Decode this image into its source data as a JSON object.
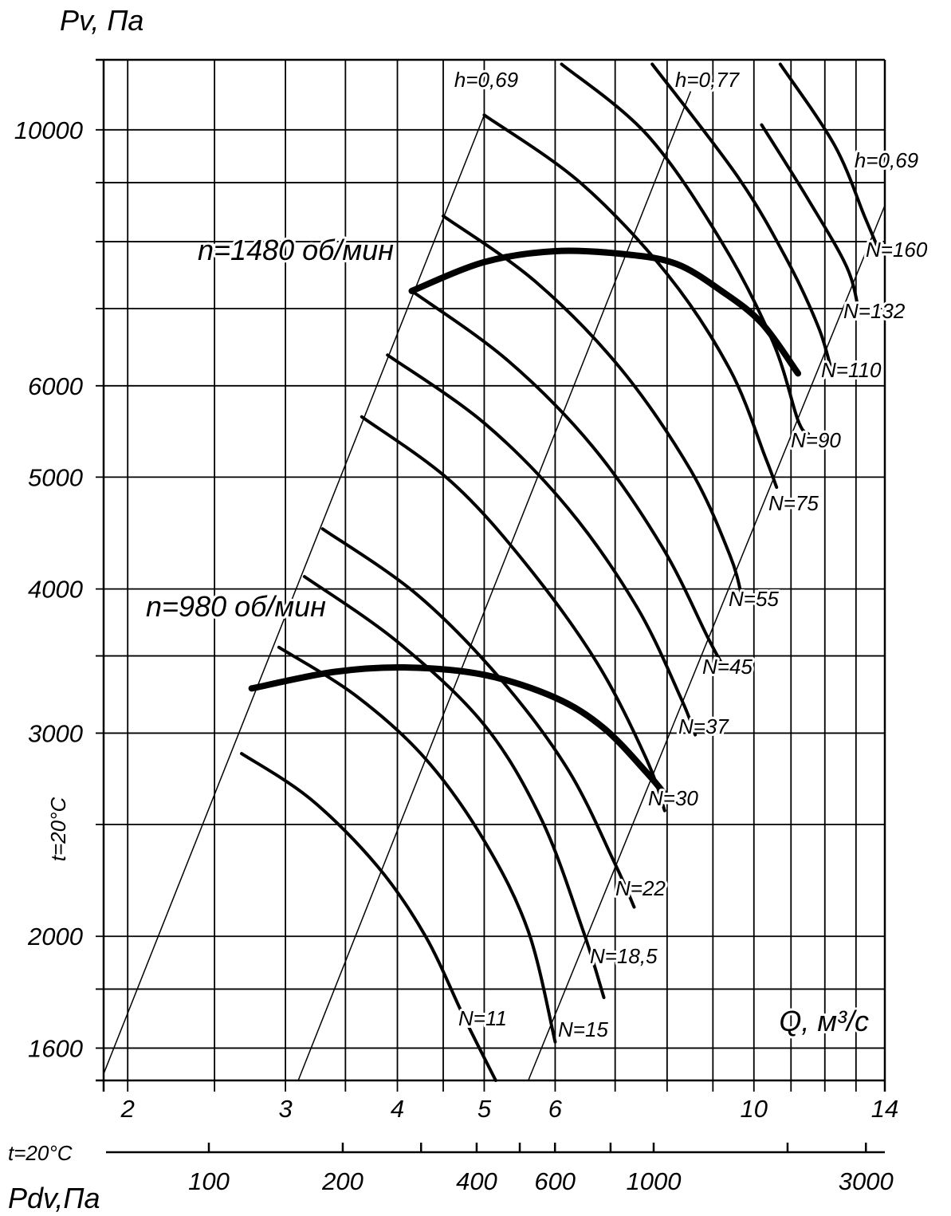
{
  "chart_data": {
    "type": "line",
    "y_axis": {
      "label": "Pv, Па",
      "scale": "log",
      "range": [
        1500,
        11500
      ],
      "ticks": [
        {
          "value": 10000,
          "label": "10000"
        },
        {
          "value": 6000,
          "label": "6000"
        },
        {
          "value": 5000,
          "label": "5000"
        },
        {
          "value": 4000,
          "label": "4000"
        },
        {
          "value": 3000,
          "label": "3000"
        },
        {
          "value": 2000,
          "label": "2000"
        },
        {
          "value": 1600,
          "label": "1600"
        }
      ],
      "minor_ticks": [
        9000,
        8000,
        7000,
        3500,
        2500,
        1800,
        1500
      ]
    },
    "x_axis": {
      "label": "Q, м³/с",
      "scale": "log",
      "range": [
        1.88,
        14
      ],
      "ticks": [
        {
          "value": 2,
          "label": "2"
        },
        {
          "value": 3,
          "label": "3"
        },
        {
          "value": 4,
          "label": "4"
        },
        {
          "value": 5,
          "label": "5"
        },
        {
          "value": 6,
          "label": "6"
        },
        {
          "value": 10,
          "label": "10"
        },
        {
          "value": 14,
          "label": "14"
        }
      ],
      "minor_ticks": [
        2.5,
        3.5,
        4.5,
        7,
        8,
        9,
        11,
        12,
        13
      ]
    },
    "dynamic_pressure_axis": {
      "label": "Pdv,Па",
      "condition": "t=20°C",
      "ticks": [
        {
          "value": 100,
          "label": "100"
        },
        {
          "value": 200,
          "label": "200"
        },
        {
          "value": 400,
          "label": "400"
        },
        {
          "value": 600,
          "label": "600"
        },
        {
          "value": 1000,
          "label": "1000"
        },
        {
          "value": 3000,
          "label": "3000"
        }
      ],
      "minor_ticks": [
        300,
        500,
        800,
        2000
      ]
    },
    "condition_label": "t=20°C",
    "efficiency_lines": [
      {
        "label": "h=0,69",
        "points": [
          [
            1.88,
            1520
          ],
          [
            5.0,
            10300
          ]
        ]
      },
      {
        "label": "h=0,77",
        "points": [
          [
            3.1,
            1500
          ],
          [
            8.5,
            10800
          ]
        ]
      },
      {
        "label": "h=0,69",
        "points": [
          [
            5.6,
            1500
          ],
          [
            14.0,
            8600
          ]
        ]
      }
    ],
    "speed_curves": [
      {
        "label": "n=1480 об/мин",
        "points": [
          [
            4.15,
            7250
          ],
          [
            5.0,
            7680
          ],
          [
            6.0,
            7850
          ],
          [
            7.2,
            7800
          ],
          [
            8.2,
            7650
          ],
          [
            9.2,
            7250
          ],
          [
            10.2,
            6800
          ],
          [
            11.2,
            6150
          ]
        ]
      },
      {
        "label": "n=980 об/мин",
        "points": [
          [
            2.75,
            3280
          ],
          [
            3.4,
            3390
          ],
          [
            4.1,
            3420
          ],
          [
            5.0,
            3370
          ],
          [
            6.0,
            3220
          ],
          [
            6.8,
            3030
          ],
          [
            7.6,
            2770
          ],
          [
            8.0,
            2640
          ]
        ]
      }
    ],
    "power_curves": [
      {
        "label": "N=11",
        "points": [
          [
            2.68,
            2880
          ],
          [
            3.2,
            2630
          ],
          [
            3.8,
            2300
          ],
          [
            4.3,
            2000
          ],
          [
            4.75,
            1700
          ],
          [
            5.15,
            1500
          ]
        ]
      },
      {
        "label": "N=15",
        "points": [
          [
            2.95,
            3560
          ],
          [
            3.6,
            3230
          ],
          [
            4.3,
            2850
          ],
          [
            5.0,
            2420
          ],
          [
            5.6,
            2020
          ],
          [
            6.0,
            1620
          ]
        ]
      },
      {
        "label": "N=18,5",
        "points": [
          [
            3.15,
            4100
          ],
          [
            4.0,
            3600
          ],
          [
            5.0,
            3050
          ],
          [
            5.8,
            2520
          ],
          [
            6.45,
            2020
          ],
          [
            6.8,
            1770
          ]
        ]
      },
      {
        "label": "N=22",
        "points": [
          [
            3.3,
            4510
          ],
          [
            4.2,
            3960
          ],
          [
            5.2,
            3350
          ],
          [
            6.2,
            2790
          ],
          [
            7.0,
            2310
          ],
          [
            7.35,
            2120
          ]
        ]
      },
      {
        "label": "N=30",
        "points": [
          [
            3.65,
            5640
          ],
          [
            4.6,
            4950
          ],
          [
            5.6,
            4180
          ],
          [
            6.7,
            3440
          ],
          [
            7.6,
            2840
          ],
          [
            7.95,
            2570
          ]
        ]
      },
      {
        "label": "N=37",
        "points": [
          [
            3.9,
            6380
          ],
          [
            5.0,
            5570
          ],
          [
            6.2,
            4700
          ],
          [
            7.4,
            3860
          ],
          [
            8.3,
            3210
          ],
          [
            8.6,
            2990
          ]
        ]
      },
      {
        "label": "N=45",
        "points": [
          [
            4.15,
            7250
          ],
          [
            5.3,
            6320
          ],
          [
            6.6,
            5320
          ],
          [
            7.9,
            4350
          ],
          [
            8.9,
            3620
          ],
          [
            9.3,
            3400
          ]
        ]
      },
      {
        "label": "N=55",
        "points": [
          [
            4.5,
            8420
          ],
          [
            5.7,
            7390
          ],
          [
            7.1,
            6210
          ],
          [
            8.5,
            5070
          ],
          [
            9.4,
            4280
          ],
          [
            9.7,
            3930
          ]
        ]
      },
      {
        "label": "N=75",
        "points": [
          [
            5.0,
            10300
          ],
          [
            6.4,
            9000
          ],
          [
            8.0,
            7500
          ],
          [
            9.4,
            6200
          ],
          [
            10.3,
            5200
          ],
          [
            10.6,
            4900
          ]
        ]
      },
      {
        "label": "N=90",
        "points": [
          [
            6.1,
            11400
          ],
          [
            7.6,
            9900
          ],
          [
            9.2,
            8000
          ],
          [
            10.5,
            6550
          ],
          [
            11.2,
            5600
          ],
          [
            11.5,
            5450
          ]
        ]
      },
      {
        "label": "N=110",
        "points": [
          [
            7.7,
            11400
          ],
          [
            9.6,
            9100
          ],
          [
            10.9,
            7700
          ],
          [
            11.8,
            6750
          ],
          [
            12.2,
            6200
          ]
        ]
      },
      {
        "label": "N=132",
        "points": [
          [
            10.2,
            10100
          ],
          [
            11.5,
            8700
          ],
          [
            12.7,
            7600
          ],
          [
            13.1,
            6950
          ]
        ]
      },
      {
        "label": "N=160",
        "points": [
          [
            10.7,
            11400
          ],
          [
            12.3,
            9700
          ],
          [
            13.3,
            8400
          ],
          [
            13.8,
            7850
          ]
        ]
      }
    ]
  }
}
